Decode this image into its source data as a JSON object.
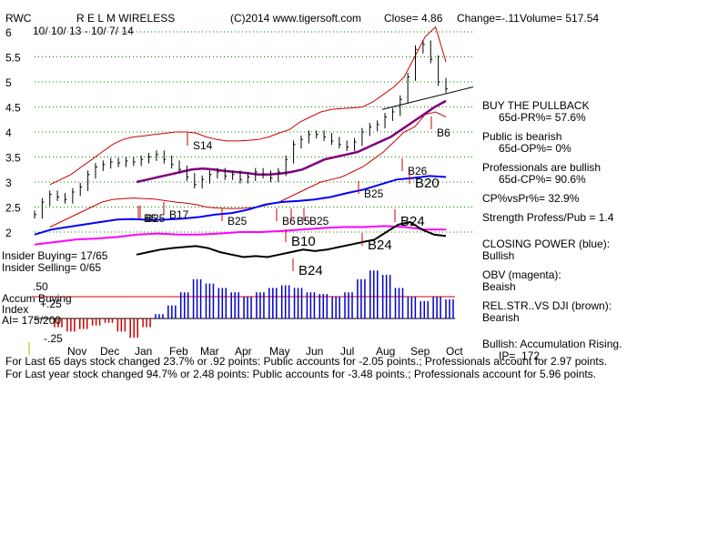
{
  "header": {
    "ticker": "RWC",
    "company": "R E L M WIRELESS",
    "copyright": "(C)2014 www.tigersoft.com",
    "close": "Close=  4.86",
    "change": "Change=-.11",
    "volume": "Volume= 517.54",
    "date_range": "10/ 10/ 13 - 10/ 7/ 14"
  },
  "panel_labels": {
    "insider_buying": "Insider Buying= 17/65",
    "insider_selling": "Insider Selling= 0/65",
    "accum_index_a": "Accum Buying",
    "accum_index_b": "Index",
    "ai": "AI= 175/200",
    "accum_50": ".50",
    "accum_25": "+.25",
    "accum_m25": "-.25"
  },
  "right_panel": {
    "buy_pullback": "BUY THE PULLBACK",
    "pr": "65d-PR%= 57.6%",
    "public_bearish": "Public is bearish",
    "op": "65d-OP%= 0%",
    "pros_bullish": "Professionals are bullish",
    "cp": "65d-CP%= 90.6%",
    "cpvspr": "CP%vsPr%=  32.9%",
    "strength": "Strength Profess/Pub = 1.4",
    "closing_power": "CLOSING POWER (blue):",
    "closing_power_val": "Bullish",
    "obv": "OBV (magenta):",
    "obv_val": "Beaish",
    "relstr": "REL.STR..VS DJI (brown):",
    "relstr_val": "Bearish",
    "accum": "Bullish: Accumulation Rising.",
    "ip": "IP=  .172"
  },
  "footer": {
    "line1": "For Last 65 days stock changed  23.7% or  .92 points:  Public accounts for -2.05 points.;  Professionals account for  2.97 points.",
    "line2": "For Last year stock changed  94.7% or  2.48 points:  Public accounts for -3.48 points.;  Professionals account for  5.96 points."
  },
  "colors": {
    "price": "#000000",
    "band": "#cc0000",
    "ma": "#800080",
    "closing_power": "#0000ff",
    "obv": "#ff00ff",
    "relstr": "#000000",
    "accum_pos": "#0000cc",
    "accum_neg": "#cc0000",
    "grid": "#008000",
    "arrow": "#cc0000"
  },
  "chart_data": {
    "type": "line",
    "x_ticks": [
      "Nov",
      "Dec",
      "Jan",
      "Feb",
      "Mar",
      "Apr",
      "May",
      "Jun",
      "Jul",
      "Aug",
      "Sep",
      "Oct"
    ],
    "y_ticks": [
      "6",
      "5.5",
      "5",
      "4.5",
      "4",
      "3.5",
      "3",
      "2.5",
      "2"
    ],
    "ylim": [
      2,
      6
    ],
    "grid": true,
    "price_close": [
      2.35,
      2.6,
      2.75,
      2.7,
      2.65,
      2.8,
      2.9,
      3.15,
      3.3,
      3.35,
      3.4,
      3.38,
      3.42,
      3.4,
      3.45,
      3.5,
      3.55,
      3.45,
      3.35,
      3.25,
      3.1,
      2.95,
      3.05,
      3.15,
      3.2,
      3.12,
      3.15,
      3.05,
      3.1,
      3.2,
      3.15,
      3.08,
      3.2,
      3.45,
      3.75,
      3.85,
      3.95,
      3.95,
      3.9,
      3.82,
      3.75,
      3.7,
      3.8,
      4.0,
      4.1,
      4.15,
      4.3,
      4.4,
      4.65,
      5.1,
      5.65,
      5.75,
      5.45,
      5.0,
      4.86
    ],
    "band_upper": [
      2.95,
      3.05,
      3.15,
      3.3,
      3.45,
      3.6,
      3.75,
      3.85,
      3.9,
      3.92,
      3.95,
      3.97,
      4.0,
      4.0,
      3.98,
      3.9,
      3.85,
      3.82,
      3.82,
      3.83,
      3.85,
      3.9,
      3.98,
      4.05,
      4.2,
      4.3,
      4.4,
      4.45,
      4.47,
      4.48,
      4.5,
      4.6,
      4.75,
      4.9,
      5.1,
      5.5,
      5.9,
      6.1,
      5.4
    ],
    "band_lower": [
      2.1,
      2.2,
      2.3,
      2.4,
      2.5,
      2.6,
      2.65,
      2.67,
      2.68,
      2.67,
      2.66,
      2.63,
      2.6,
      2.58,
      2.55,
      2.5,
      2.48,
      2.47,
      2.47,
      2.48,
      2.5,
      2.55,
      2.6,
      2.7,
      2.8,
      2.9,
      3.0,
      3.05,
      3.1,
      3.2,
      3.3,
      3.45,
      3.6,
      3.8,
      4.0,
      4.1,
      4.35,
      4.4,
      4.3
    ],
    "ma_65": [
      3.0,
      3.05,
      3.1,
      3.15,
      3.2,
      3.25,
      3.27,
      3.25,
      3.22,
      3.2,
      3.18,
      3.15,
      3.15,
      3.17,
      3.2,
      3.25,
      3.35,
      3.45,
      3.5,
      3.55,
      3.6,
      3.7,
      3.8,
      3.9,
      4.05,
      4.2,
      4.35,
      4.5,
      4.62
    ],
    "closing_power": [
      1.95,
      2.05,
      2.1,
      2.15,
      2.2,
      2.25,
      2.26,
      2.24,
      2.25,
      2.27,
      2.3,
      2.35,
      2.38,
      2.45,
      2.55,
      2.6,
      2.62,
      2.65,
      2.7,
      2.78,
      2.85,
      2.95,
      3.05,
      3.08,
      3.12,
      3.1
    ],
    "obv": [
      1.75,
      1.8,
      1.85,
      1.87,
      1.9,
      1.95,
      1.97,
      1.95,
      1.95,
      1.97,
      2.0,
      2.0,
      2.02,
      2.05,
      2.08,
      2.1,
      2.1,
      2.12,
      2.1,
      2.05,
      2.05
    ],
    "relstr": [
      1.55,
      1.6,
      1.65,
      1.68,
      1.7,
      1.72,
      1.68,
      1.6,
      1.55,
      1.5,
      1.52,
      1.5,
      1.55,
      1.6,
      1.65,
      1.62,
      1.65,
      1.7,
      1.75,
      1.8,
      1.85,
      2.0,
      2.15,
      2.2,
      2.05,
      1.95,
      1.92
    ],
    "accum_index": [
      -0.1,
      -0.15,
      -0.12,
      -0.08,
      -0.05,
      -0.15,
      -0.22,
      -0.1,
      0.05,
      0.15,
      0.3,
      0.45,
      0.4,
      0.35,
      0.3,
      0.25,
      0.3,
      0.35,
      0.38,
      0.35,
      0.3,
      0.28,
      0.25,
      0.3,
      0.45,
      0.55,
      0.5,
      0.35,
      0.25,
      0.2,
      0.25,
      0.22
    ],
    "trendline": {
      "from": 4.45,
      "to": 4.9
    },
    "signals": [
      {
        "label": "S14"
      },
      {
        "label": "B6"
      },
      {
        "label": "B26"
      },
      {
        "label": "B20"
      },
      {
        "label": "B25"
      },
      {
        "label": "B24"
      },
      {
        "label": "B10"
      },
      {
        "label": "B5"
      },
      {
        "label": "B17"
      },
      {
        "label": "B25"
      },
      {
        "label": "B6"
      },
      {
        "label": "B5"
      },
      {
        "label": "B25"
      },
      {
        "label": "B25"
      },
      {
        "label": "B24"
      },
      {
        "label": "B24"
      }
    ]
  }
}
